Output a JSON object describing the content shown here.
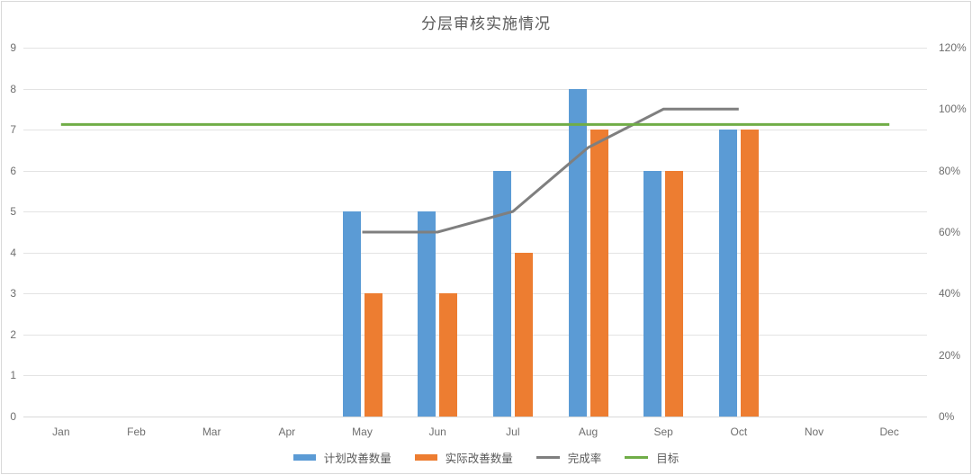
{
  "chart_data": {
    "type": "combo-bar-line",
    "title": "分层审核实施情况",
    "categories": [
      "Jan",
      "Feb",
      "Mar",
      "Apr",
      "May",
      "Jun",
      "Jul",
      "Aug",
      "Sep",
      "Oct",
      "Nov",
      "Dec"
    ],
    "left_axis": {
      "min": 0,
      "max": 9,
      "tick_labels": [
        "0",
        "1",
        "2",
        "3",
        "4",
        "5",
        "6",
        "7",
        "8",
        "9"
      ]
    },
    "right_axis": {
      "min": 0,
      "max": 120,
      "tick_labels": [
        "0%",
        "20%",
        "40%",
        "60%",
        "80%",
        "100%",
        "120%"
      ],
      "tick_values": [
        0,
        20,
        40,
        60,
        80,
        100,
        120
      ]
    },
    "grid": true,
    "legend_position": "bottom",
    "series": [
      {
        "name": "计划改善数量",
        "type": "bar",
        "axis": "left",
        "color": "#5b9bd5",
        "values": [
          null,
          null,
          null,
          null,
          5,
          5,
          6,
          8,
          6,
          7,
          null,
          null
        ]
      },
      {
        "name": "实际改善数量",
        "type": "bar",
        "axis": "left",
        "color": "#ed7d31",
        "values": [
          null,
          null,
          null,
          null,
          3,
          3,
          4,
          7,
          6,
          7,
          null,
          null
        ]
      },
      {
        "name": "完成率",
        "type": "line",
        "axis": "right",
        "color": "#7f7f7f",
        "values": [
          null,
          null,
          null,
          null,
          60,
          60,
          66.7,
          87.5,
          100,
          100,
          null,
          null
        ]
      },
      {
        "name": "目标",
        "type": "line",
        "axis": "right",
        "color": "#70ad47",
        "values": [
          95,
          95,
          95,
          95,
          95,
          95,
          95,
          95,
          95,
          95,
          95,
          95
        ]
      }
    ]
  }
}
